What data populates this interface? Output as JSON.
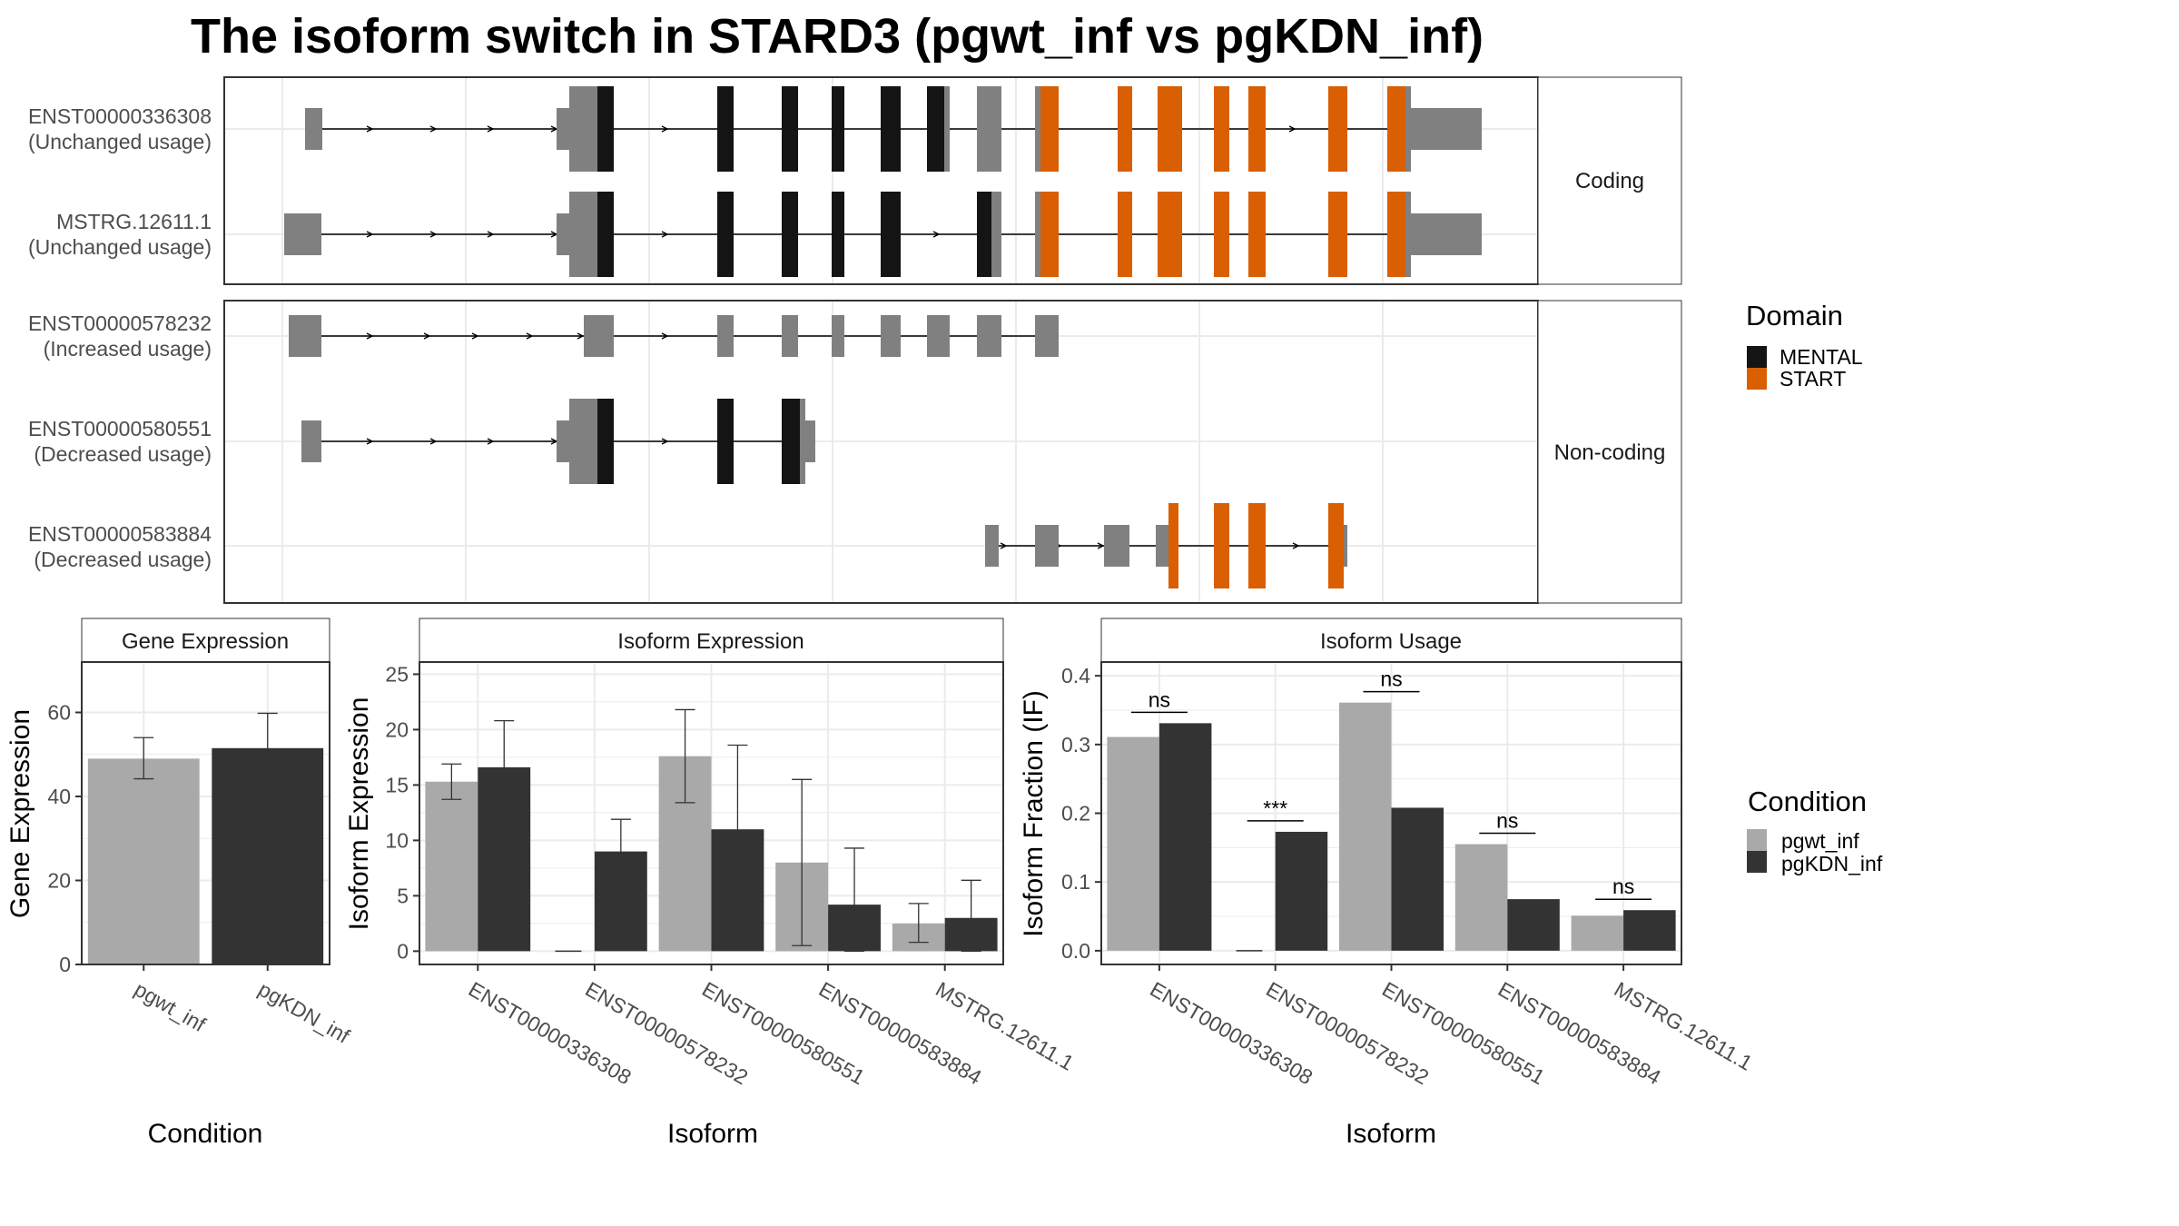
{
  "title": "The isoform switch in STARD3 (pgwt_inf vs pgKDN_inf)",
  "colors": {
    "utr": "#808080",
    "mental": "#141414",
    "start": "#D95F02",
    "pgwt_inf": "#A9A9A9",
    "pgKDN_inf": "#333333",
    "grid": "#EBEBEB",
    "strip": "#FFFFFF",
    "panel_border": "#333333"
  },
  "structure": {
    "facets": [
      "Coding",
      "Non-coding"
    ],
    "domain_legend": {
      "title": "Domain",
      "items": [
        {
          "label": "MENTAL",
          "color": "#141414"
        },
        {
          "label": "START",
          "color": "#D95F02"
        }
      ]
    },
    "transcripts": [
      {
        "id": "ENST00000336308",
        "usage": "(Unchanged usage)",
        "facet": "Coding"
      },
      {
        "id": "MSTRG.12611.1",
        "usage": "(Unchanged usage)",
        "facet": "Coding"
      },
      {
        "id": "ENST00000578232",
        "usage": "(Increased usage)",
        "facet": "Non-coding"
      },
      {
        "id": "ENST00000580551",
        "usage": "(Decreased usage)",
        "facet": "Non-coding"
      },
      {
        "id": "ENST00000583884",
        "usage": "(Decreased usage)",
        "facet": "Non-coding"
      }
    ]
  },
  "condition_legend": {
    "title": "Condition",
    "items": [
      {
        "label": "pgwt_inf",
        "color": "#A9A9A9"
      },
      {
        "label": "pgKDN_inf",
        "color": "#333333"
      }
    ]
  },
  "chart_data": [
    {
      "type": "bar",
      "title": "Gene Expression",
      "xlabel": "Condition",
      "ylabel": "Gene Expression",
      "categories": [
        "pgwt_inf",
        "pgKDN_inf"
      ],
      "values": [
        49.0,
        51.5
      ],
      "error_low": [
        44.2,
        43.5
      ],
      "error_high": [
        54.0,
        59.8
      ],
      "yticks": [
        0,
        20,
        40,
        60
      ],
      "ylim": [
        0,
        72
      ]
    },
    {
      "type": "bar",
      "title": "Isoform Expression",
      "xlabel": "Isoform",
      "ylabel": "Isoform Expression",
      "categories": [
        "ENST00000336308",
        "ENST00000578232",
        "ENST00000580551",
        "ENST00000583884",
        "MSTRG.12611.1"
      ],
      "series": [
        {
          "name": "pgwt_inf",
          "values": [
            15.3,
            0.0,
            17.6,
            8.0,
            2.5
          ],
          "error_low": [
            13.7,
            0.0,
            13.4,
            0.5,
            0.8
          ],
          "error_high": [
            16.9,
            0.0,
            21.8,
            15.5,
            4.3
          ]
        },
        {
          "name": "pgKDN_inf",
          "values": [
            16.6,
            9.0,
            11.0,
            4.2,
            3.0
          ],
          "error_low": [
            12.4,
            6.2,
            3.3,
            0.0,
            0.0
          ],
          "error_high": [
            20.8,
            11.9,
            18.6,
            9.3,
            6.4
          ]
        }
      ],
      "yticks": [
        0,
        5,
        10,
        15,
        20,
        25
      ],
      "ylim": [
        -1.2,
        26.1
      ]
    },
    {
      "type": "bar",
      "title": "Isoform Usage",
      "xlabel": "Isoform",
      "ylabel": "Isoform Fraction (IF)",
      "categories": [
        "ENST00000336308",
        "ENST00000578232",
        "ENST00000580551",
        "ENST00000583884",
        "MSTRG.12611.1"
      ],
      "series": [
        {
          "name": "pgwt_inf",
          "values": [
            0.311,
            0.0,
            0.361,
            0.155,
            0.051
          ]
        },
        {
          "name": "pgKDN_inf",
          "values": [
            0.331,
            0.173,
            0.208,
            0.075,
            0.059
          ]
        }
      ],
      "significance": [
        "ns",
        "***",
        "ns",
        "ns",
        "ns"
      ],
      "yticks": [
        0.0,
        0.1,
        0.2,
        0.3,
        0.4
      ],
      "ylim": [
        -0.02,
        0.42
      ]
    }
  ]
}
